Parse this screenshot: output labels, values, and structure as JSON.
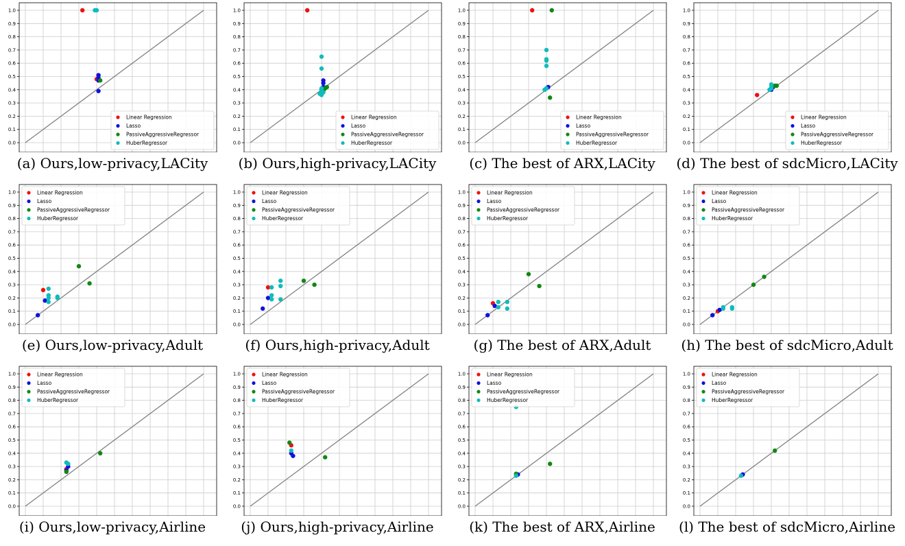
{
  "figure": {
    "colors": {
      "Linear Regression": "#ee1111",
      "Lasso": "#1111dd",
      "PassiveAggressiveRegressor": "#118811",
      "HuberRegressor": "#11bbbb",
      "diagonal": "#808080",
      "grid": "#cccccc"
    },
    "legend_entries": [
      "Linear Regression",
      "Lasso",
      "PassiveAggressiveRegressor",
      "HuberRegressor"
    ]
  },
  "chart_data": [
    {
      "type": "scatter",
      "caption": "(a) Ours,low-privacy,LACity",
      "xlim": [
        0,
        1
      ],
      "ylim": [
        0,
        1
      ],
      "ticks": [
        "0.0",
        "0.1",
        "0.2",
        "0.3",
        "0.4",
        "0.5",
        "0.6",
        "0.7",
        "0.8",
        "0.9",
        "1.0"
      ],
      "grid": true,
      "reference_line": "y = x",
      "legend": "bottom-right",
      "series": [
        {
          "name": "Linear Regression",
          "points": [
            [
              0.32,
              1.0
            ],
            [
              0.4,
              0.48
            ]
          ]
        },
        {
          "name": "Lasso",
          "points": [
            [
              0.41,
              0.51
            ],
            [
              0.41,
              0.49
            ],
            [
              0.41,
              0.47
            ],
            [
              0.41,
              0.39
            ]
          ]
        },
        {
          "name": "PassiveAggressiveRegressor",
          "points": [
            [
              0.42,
              0.47
            ]
          ]
        },
        {
          "name": "HuberRegressor",
          "points": [
            [
              0.39,
              1.0
            ],
            [
              0.4,
              1.0
            ]
          ]
        }
      ]
    },
    {
      "type": "scatter",
      "caption": "(b) Ours,high-privacy,LACity",
      "xlim": [
        0,
        1
      ],
      "ylim": [
        0,
        1
      ],
      "ticks": [
        "0.0",
        "0.1",
        "0.2",
        "0.3",
        "0.4",
        "0.5",
        "0.6",
        "0.7",
        "0.8",
        "0.9",
        "1.0"
      ],
      "grid": true,
      "reference_line": "y = x",
      "legend": "bottom-right",
      "series": [
        {
          "name": "Linear Regression",
          "points": [
            [
              0.32,
              1.0
            ]
          ]
        },
        {
          "name": "Lasso",
          "points": [
            [
              0.41,
              0.47
            ],
            [
              0.41,
              0.45
            ],
            [
              0.41,
              0.42
            ],
            [
              0.4,
              0.4
            ]
          ]
        },
        {
          "name": "PassiveAggressiveRegressor",
          "points": [
            [
              0.42,
              0.41
            ],
            [
              0.43,
              0.42
            ],
            [
              0.41,
              0.39
            ]
          ]
        },
        {
          "name": "HuberRegressor",
          "points": [
            [
              0.4,
              0.65
            ],
            [
              0.4,
              0.56
            ],
            [
              0.4,
              0.41
            ],
            [
              0.4,
              0.39
            ],
            [
              0.39,
              0.37
            ],
            [
              0.4,
              0.36
            ],
            [
              0.41,
              0.38
            ]
          ]
        }
      ]
    },
    {
      "type": "scatter",
      "caption": "(c) The best of ARX,LACity",
      "xlim": [
        0,
        1
      ],
      "ylim": [
        0,
        1
      ],
      "ticks": [
        "0.0",
        "0.1",
        "0.2",
        "0.3",
        "0.4",
        "0.5",
        "0.6",
        "0.7",
        "0.8",
        "0.9",
        "1.0"
      ],
      "grid": true,
      "reference_line": "y = x",
      "legend": "bottom-right",
      "series": [
        {
          "name": "Linear Regression",
          "points": [
            [
              0.32,
              1.0
            ]
          ]
        },
        {
          "name": "Lasso",
          "points": [
            [
              0.41,
              0.42
            ],
            [
              0.4,
              0.41
            ]
          ]
        },
        {
          "name": "PassiveAggressiveRegressor",
          "points": [
            [
              0.43,
              1.0
            ],
            [
              0.42,
              0.34
            ]
          ]
        },
        {
          "name": "HuberRegressor",
          "points": [
            [
              0.4,
              0.7
            ],
            [
              0.4,
              0.63
            ],
            [
              0.4,
              0.62
            ],
            [
              0.4,
              0.58
            ],
            [
              0.39,
              0.4
            ],
            [
              0.4,
              0.41
            ]
          ]
        }
      ]
    },
    {
      "type": "scatter",
      "caption": "(d) The best of sdcMicro,LACity",
      "xlim": [
        0,
        1
      ],
      "ylim": [
        0,
        1
      ],
      "ticks": [
        "0.0",
        "0.1",
        "0.2",
        "0.3",
        "0.4",
        "0.5",
        "0.6",
        "0.7",
        "0.8",
        "0.9",
        "1.0"
      ],
      "grid": true,
      "reference_line": "y = x",
      "legend": "bottom-right",
      "series": [
        {
          "name": "Linear Regression",
          "points": [
            [
              0.32,
              0.36
            ]
          ]
        },
        {
          "name": "Lasso",
          "points": [
            [
              0.41,
              0.42
            ],
            [
              0.4,
              0.4
            ]
          ]
        },
        {
          "name": "PassiveAggressiveRegressor",
          "points": [
            [
              0.42,
              0.43
            ],
            [
              0.43,
              0.43
            ]
          ]
        },
        {
          "name": "HuberRegressor",
          "points": [
            [
              0.4,
              0.44
            ],
            [
              0.4,
              0.42
            ],
            [
              0.39,
              0.4
            ],
            [
              0.4,
              0.41
            ]
          ]
        }
      ]
    },
    {
      "type": "scatter",
      "caption": "(e) Ours,low-privacy,Adult",
      "xlim": [
        0,
        1
      ],
      "ylim": [
        0,
        1
      ],
      "ticks": [
        "0.0",
        "0.1",
        "0.2",
        "0.3",
        "0.4",
        "0.5",
        "0.6",
        "0.7",
        "0.8",
        "0.9",
        "1.0"
      ],
      "grid": true,
      "reference_line": "y = x",
      "legend": "top-left",
      "series": [
        {
          "name": "Linear Regression",
          "points": [
            [
              0.1,
              0.26
            ]
          ]
        },
        {
          "name": "Lasso",
          "points": [
            [
              0.07,
              0.07
            ],
            [
              0.11,
              0.18
            ]
          ]
        },
        {
          "name": "PassiveAggressiveRegressor",
          "points": [
            [
              0.3,
              0.44
            ],
            [
              0.36,
              0.31
            ]
          ]
        },
        {
          "name": "HuberRegressor",
          "points": [
            [
              0.13,
              0.27
            ],
            [
              0.13,
              0.22
            ],
            [
              0.13,
              0.2
            ],
            [
              0.13,
              0.17
            ],
            [
              0.18,
              0.21
            ],
            [
              0.18,
              0.2
            ]
          ]
        }
      ]
    },
    {
      "type": "scatter",
      "caption": "(f) Ours,high-privacy,Adult",
      "xlim": [
        0,
        1
      ],
      "ylim": [
        0,
        1
      ],
      "ticks": [
        "0.0",
        "0.1",
        "0.2",
        "0.3",
        "0.4",
        "0.5",
        "0.6",
        "0.7",
        "0.8",
        "0.9",
        "1.0"
      ],
      "grid": true,
      "reference_line": "y = x",
      "legend": "top-left",
      "series": [
        {
          "name": "Linear Regression",
          "points": [
            [
              0.1,
              0.28
            ]
          ]
        },
        {
          "name": "Lasso",
          "points": [
            [
              0.07,
              0.12
            ],
            [
              0.1,
              0.2
            ]
          ]
        },
        {
          "name": "PassiveAggressiveRegressor",
          "points": [
            [
              0.3,
              0.33
            ],
            [
              0.36,
              0.3
            ]
          ]
        },
        {
          "name": "HuberRegressor",
          "points": [
            [
              0.12,
              0.28
            ],
            [
              0.12,
              0.22
            ],
            [
              0.12,
              0.19
            ],
            [
              0.17,
              0.33
            ],
            [
              0.17,
              0.29
            ],
            [
              0.17,
              0.19
            ]
          ]
        }
      ]
    },
    {
      "type": "scatter",
      "caption": "(g) The best of ARX,Adult",
      "xlim": [
        0,
        1
      ],
      "ylim": [
        0,
        1
      ],
      "ticks": [
        "0.0",
        "0.1",
        "0.2",
        "0.3",
        "0.4",
        "0.5",
        "0.6",
        "0.7",
        "0.8",
        "0.9",
        "1.0"
      ],
      "grid": true,
      "reference_line": "y = x",
      "legend": "top-left",
      "series": [
        {
          "name": "Linear Regression",
          "points": [
            [
              0.1,
              0.16
            ]
          ]
        },
        {
          "name": "Lasso",
          "points": [
            [
              0.07,
              0.07
            ],
            [
              0.11,
              0.14
            ]
          ]
        },
        {
          "name": "PassiveAggressiveRegressor",
          "points": [
            [
              0.3,
              0.38
            ],
            [
              0.36,
              0.29
            ]
          ]
        },
        {
          "name": "HuberRegressor",
          "points": [
            [
              0.13,
              0.17
            ],
            [
              0.13,
              0.13
            ],
            [
              0.18,
              0.17
            ],
            [
              0.18,
              0.12
            ]
          ]
        }
      ]
    },
    {
      "type": "scatter",
      "caption": "(h) The best of sdcMicro,Adult",
      "xlim": [
        0,
        1
      ],
      "ylim": [
        0,
        1
      ],
      "ticks": [
        "0.0",
        "0.1",
        "0.2",
        "0.3",
        "0.4",
        "0.5",
        "0.6",
        "0.7",
        "0.8",
        "0.9",
        "1.0"
      ],
      "grid": true,
      "reference_line": "y = x",
      "legend": "top-left",
      "series": [
        {
          "name": "Linear Regression",
          "points": [
            [
              0.1,
              0.1
            ]
          ]
        },
        {
          "name": "Lasso",
          "points": [
            [
              0.07,
              0.07
            ],
            [
              0.11,
              0.11
            ]
          ]
        },
        {
          "name": "PassiveAggressiveRegressor",
          "points": [
            [
              0.3,
              0.3
            ],
            [
              0.36,
              0.36
            ]
          ]
        },
        {
          "name": "HuberRegressor",
          "points": [
            [
              0.13,
              0.13
            ],
            [
              0.13,
              0.12
            ],
            [
              0.18,
              0.13
            ],
            [
              0.18,
              0.12
            ]
          ]
        }
      ]
    },
    {
      "type": "scatter",
      "caption": "(i) Ours,low-privacy,Airline",
      "xlim": [
        0,
        1
      ],
      "ylim": [
        0,
        1
      ],
      "ticks": [
        "0.0",
        "0.1",
        "0.2",
        "0.3",
        "0.4",
        "0.5",
        "0.6",
        "0.7",
        "0.8",
        "0.9",
        "1.0"
      ],
      "grid": true,
      "reference_line": "y = x",
      "legend": "top-left",
      "series": [
        {
          "name": "Linear Regression",
          "points": [
            [
              0.23,
              0.28
            ]
          ]
        },
        {
          "name": "Lasso",
          "points": [
            [
              0.24,
              0.3
            ],
            [
              0.23,
              0.27
            ]
          ]
        },
        {
          "name": "PassiveAggressiveRegressor",
          "points": [
            [
              0.23,
              0.26
            ],
            [
              0.42,
              0.4
            ]
          ]
        },
        {
          "name": "HuberRegressor",
          "points": [
            [
              0.23,
              0.33
            ],
            [
              0.24,
              0.32
            ]
          ]
        }
      ]
    },
    {
      "type": "scatter",
      "caption": "(j) Ours,high-privacy,Airline",
      "xlim": [
        0,
        1
      ],
      "ylim": [
        0,
        1
      ],
      "ticks": [
        "0.0",
        "0.1",
        "0.2",
        "0.3",
        "0.4",
        "0.5",
        "0.6",
        "0.7",
        "0.8",
        "0.9",
        "1.0"
      ],
      "grid": true,
      "reference_line": "y = x",
      "legend": "top-left",
      "series": [
        {
          "name": "Linear Regression",
          "points": [
            [
              0.23,
              0.46
            ]
          ]
        },
        {
          "name": "Lasso",
          "points": [
            [
              0.23,
              0.4
            ],
            [
              0.24,
              0.38
            ]
          ]
        },
        {
          "name": "PassiveAggressiveRegressor",
          "points": [
            [
              0.22,
              0.48
            ],
            [
              0.42,
              0.37
            ]
          ]
        },
        {
          "name": "HuberRegressor",
          "points": [
            [
              0.23,
              0.42
            ]
          ]
        }
      ]
    },
    {
      "type": "scatter",
      "caption": "(k) The best of ARX,Airline",
      "xlim": [
        0,
        1
      ],
      "ylim": [
        0,
        1
      ],
      "ticks": [
        "0.0",
        "0.1",
        "0.2",
        "0.3",
        "0.4",
        "0.5",
        "0.6",
        "0.7",
        "0.8",
        "0.9",
        "1.0"
      ],
      "grid": true,
      "reference_line": "y = x",
      "legend": "top-left",
      "series": [
        {
          "name": "Linear Regression",
          "points": [
            [
              0.23,
              0.24
            ]
          ]
        },
        {
          "name": "Lasso",
          "points": [
            [
              0.24,
              0.24
            ]
          ]
        },
        {
          "name": "PassiveAggressiveRegressor",
          "points": [
            [
              0.23,
              0.245
            ],
            [
              0.42,
              0.32
            ]
          ]
        },
        {
          "name": "HuberRegressor",
          "points": [
            [
              0.23,
              0.75
            ],
            [
              0.23,
              0.23
            ]
          ]
        }
      ]
    },
    {
      "type": "scatter",
      "caption": "(l) The best of sdcMicro,Airline",
      "xlim": [
        0,
        1
      ],
      "ylim": [
        0,
        1
      ],
      "ticks": [
        "0.0",
        "0.1",
        "0.2",
        "0.3",
        "0.4",
        "0.5",
        "0.6",
        "0.7",
        "0.8",
        "0.9",
        "1.0"
      ],
      "grid": true,
      "reference_line": "y = x",
      "legend": "top-left",
      "series": [
        {
          "name": "Linear Regression",
          "points": [
            [
              0.235,
              0.235
            ]
          ]
        },
        {
          "name": "Lasso",
          "points": [
            [
              0.24,
              0.24
            ]
          ]
        },
        {
          "name": "PassiveAggressiveRegressor",
          "points": [
            [
              0.42,
              0.42
            ]
          ]
        },
        {
          "name": "HuberRegressor",
          "points": [
            [
              0.23,
              0.23
            ]
          ]
        }
      ]
    }
  ]
}
